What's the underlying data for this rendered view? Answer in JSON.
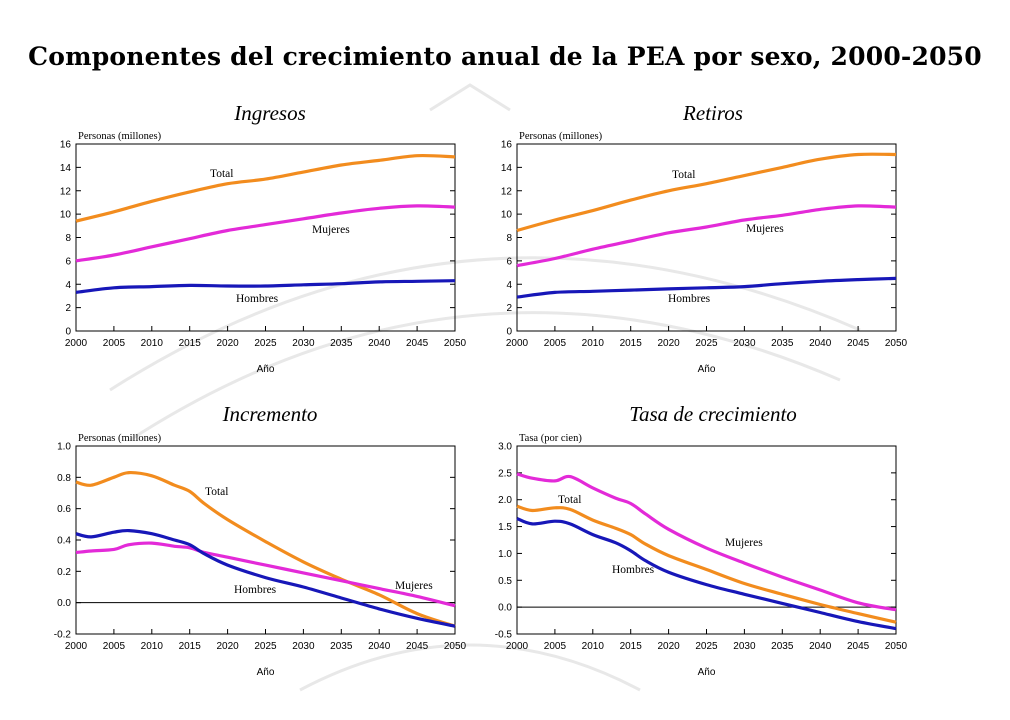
{
  "title": "Componentes del crecimiento anual de la PEA por sexo, 2000-2050",
  "colors": {
    "total": "#f28c1e",
    "mujeres": "#e32ad8",
    "hombres": "#1717b8"
  },
  "chart_data": [
    {
      "type": "line",
      "title": "Ingresos",
      "ylabel": "Personas (millones)",
      "xlabel": "Año",
      "xlim": [
        2000,
        2050
      ],
      "ylim": [
        0,
        16
      ],
      "xticks": [
        "2000",
        "2005",
        "2010",
        "2015",
        "2020",
        "2025",
        "2030",
        "2035",
        "2040",
        "2045",
        "2050"
      ],
      "yticks": [
        "0",
        "2",
        "4",
        "6",
        "8",
        "10",
        "12",
        "14",
        "16"
      ],
      "x": [
        2000,
        2005,
        2010,
        2015,
        2020,
        2025,
        2030,
        2035,
        2040,
        2045,
        2050
      ],
      "series": [
        {
          "name": "Total",
          "values": [
            9.4,
            10.2,
            11.1,
            11.9,
            12.6,
            13.0,
            13.6,
            14.2,
            14.6,
            15.0,
            14.9
          ]
        },
        {
          "name": "Mujeres",
          "values": [
            6.0,
            6.5,
            7.2,
            7.9,
            8.6,
            9.1,
            9.6,
            10.1,
            10.5,
            10.7,
            10.6
          ]
        },
        {
          "name": "Hombres",
          "values": [
            3.3,
            3.7,
            3.8,
            3.9,
            3.85,
            3.85,
            3.95,
            4.05,
            4.2,
            4.25,
            4.3
          ]
        }
      ]
    },
    {
      "type": "line",
      "title": "Retiros",
      "ylabel": "Personas (millones)",
      "xlabel": "Año",
      "xlim": [
        2000,
        2050
      ],
      "ylim": [
        0,
        16
      ],
      "xticks": [
        "2000",
        "2005",
        "2010",
        "2015",
        "2020",
        "2025",
        "2030",
        "2035",
        "2040",
        "2045",
        "2050"
      ],
      "yticks": [
        "0",
        "2",
        "4",
        "6",
        "8",
        "10",
        "12",
        "14",
        "16"
      ],
      "x": [
        2000,
        2005,
        2010,
        2015,
        2020,
        2025,
        2030,
        2035,
        2040,
        2045,
        2050
      ],
      "series": [
        {
          "name": "Total",
          "values": [
            8.6,
            9.5,
            10.3,
            11.2,
            12.0,
            12.6,
            13.3,
            14.0,
            14.7,
            15.1,
            15.1
          ]
        },
        {
          "name": "Mujeres",
          "values": [
            5.6,
            6.2,
            7.0,
            7.7,
            8.4,
            8.9,
            9.5,
            9.9,
            10.4,
            10.7,
            10.6
          ]
        },
        {
          "name": "Hombres",
          "values": [
            2.9,
            3.3,
            3.4,
            3.5,
            3.6,
            3.7,
            3.8,
            4.05,
            4.25,
            4.4,
            4.5
          ]
        }
      ]
    },
    {
      "type": "line",
      "title": "Incremento",
      "ylabel": "Personas (millones)",
      "xlabel": "Año",
      "xlim": [
        2000,
        2050
      ],
      "ylim": [
        -0.2,
        1.0
      ],
      "xticks": [
        "2000",
        "2005",
        "2010",
        "2015",
        "2020",
        "2025",
        "2030",
        "2035",
        "2040",
        "2045",
        "2050"
      ],
      "yticks": [
        "-0.2",
        "0.0",
        "0.2",
        "0.4",
        "0.6",
        "0.8",
        "1.0"
      ],
      "x": [
        2000,
        2002,
        2005,
        2007,
        2010,
        2013,
        2015,
        2017,
        2020,
        2025,
        2030,
        2035,
        2040,
        2045,
        2050
      ],
      "series": [
        {
          "name": "Total",
          "values": [
            0.77,
            0.75,
            0.8,
            0.83,
            0.81,
            0.75,
            0.71,
            0.63,
            0.53,
            0.39,
            0.26,
            0.15,
            0.05,
            -0.07,
            -0.15
          ]
        },
        {
          "name": "Mujeres",
          "values": [
            0.32,
            0.33,
            0.34,
            0.37,
            0.38,
            0.36,
            0.35,
            0.32,
            0.29,
            0.24,
            0.19,
            0.14,
            0.09,
            0.04,
            -0.02
          ]
        },
        {
          "name": "Hombres",
          "values": [
            0.44,
            0.42,
            0.45,
            0.46,
            0.44,
            0.4,
            0.37,
            0.31,
            0.24,
            0.16,
            0.1,
            0.03,
            -0.04,
            -0.1,
            -0.15
          ]
        }
      ]
    },
    {
      "type": "line",
      "title": "Tasa de crecimiento",
      "ylabel": "Tasa (por cien)",
      "xlabel": "Año",
      "xlim": [
        2000,
        2050
      ],
      "ylim": [
        -0.5,
        3.0
      ],
      "xticks": [
        "2000",
        "2005",
        "2010",
        "2015",
        "2020",
        "2025",
        "2030",
        "2035",
        "2040",
        "2045",
        "2050"
      ],
      "yticks": [
        "-0.5",
        "0.0",
        "0.5",
        "1.0",
        "1.5",
        "2.0",
        "2.5",
        "3.0"
      ],
      "x": [
        2000,
        2002,
        2005,
        2007,
        2010,
        2013,
        2015,
        2017,
        2020,
        2025,
        2030,
        2035,
        2040,
        2045,
        2050
      ],
      "series": [
        {
          "name": "Mujeres",
          "values": [
            2.48,
            2.4,
            2.35,
            2.43,
            2.22,
            2.03,
            1.93,
            1.73,
            1.45,
            1.1,
            0.82,
            0.56,
            0.32,
            0.08,
            -0.05
          ]
        },
        {
          "name": "Total",
          "values": [
            1.88,
            1.8,
            1.85,
            1.82,
            1.62,
            1.47,
            1.35,
            1.17,
            0.96,
            0.7,
            0.44,
            0.24,
            0.05,
            -0.12,
            -0.28
          ]
        },
        {
          "name": "Hombres",
          "values": [
            1.65,
            1.55,
            1.6,
            1.55,
            1.35,
            1.2,
            1.05,
            0.86,
            0.65,
            0.42,
            0.24,
            0.07,
            -0.1,
            -0.27,
            -0.4
          ]
        }
      ]
    }
  ]
}
